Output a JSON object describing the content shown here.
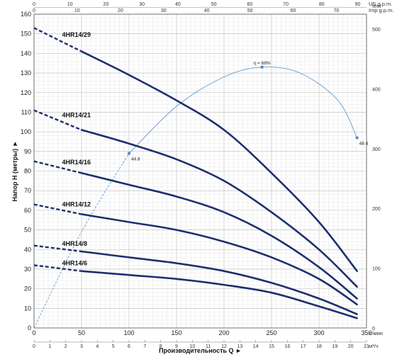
{
  "chart_data": {
    "type": "line",
    "xlabel": "Производительность Q",
    "ylabel": "Напор Н (метры)",
    "x_unit_primary": "л/мин",
    "x_unit_m3h": "м³/ч",
    "x_unit_usgpm": "US g.p.m.",
    "x_unit_impgpm": "Imp g.p.m.",
    "y_unit_feet": "feet",
    "xlim": [
      0,
      350
    ],
    "ylim": [
      0,
      160
    ],
    "y_ticks": [
      0,
      10,
      20,
      30,
      40,
      50,
      60,
      70,
      80,
      90,
      100,
      110,
      120,
      130,
      140,
      150,
      160
    ],
    "x_ticks": [
      0,
      50,
      100,
      150,
      200,
      250,
      300,
      350
    ],
    "m3h_ticks": [
      0,
      1,
      2,
      3,
      4,
      5,
      6,
      7,
      8,
      9,
      10,
      11,
      12,
      13,
      14,
      15,
      16,
      17,
      18,
      19,
      20,
      21,
      22,
      23
    ],
    "usgpm_ticks": [
      0,
      10,
      20,
      30,
      40,
      50,
      60,
      70,
      80,
      90
    ],
    "impgpm_ticks": [
      0,
      10,
      20,
      30,
      40,
      50,
      60,
      70
    ],
    "feet_ticks": [
      0,
      100,
      200,
      300,
      400,
      500
    ],
    "grid": true,
    "series": [
      {
        "name": "4HR14/29",
        "x": [
          0,
          50,
          100,
          150,
          200,
          250,
          300,
          340
        ],
        "y": [
          153,
          141,
          129,
          116,
          101,
          79,
          54,
          29
        ]
      },
      {
        "name": "4HR14/21",
        "x": [
          0,
          50,
          100,
          150,
          200,
          250,
          300,
          340
        ],
        "y": [
          111,
          101,
          94,
          86,
          75,
          59,
          40,
          21
        ]
      },
      {
        "name": "4HR14/16",
        "x": [
          0,
          50,
          100,
          150,
          200,
          250,
          300,
          340
        ],
        "y": [
          85,
          79,
          73,
          67,
          59,
          47,
          31,
          15
        ]
      },
      {
        "name": "4HR14/12",
        "x": [
          0,
          50,
          100,
          150,
          200,
          250,
          300,
          340
        ],
        "y": [
          63,
          58,
          54,
          50,
          44,
          36,
          25,
          12
        ]
      },
      {
        "name": "4HR14/8",
        "x": [
          0,
          50,
          100,
          150,
          200,
          250,
          300,
          340
        ],
        "y": [
          42,
          39,
          36,
          33,
          29,
          23,
          15,
          7
        ]
      },
      {
        "name": "4HR14/6",
        "x": [
          0,
          50,
          100,
          150,
          200,
          250,
          300,
          340
        ],
        "y": [
          32,
          29,
          27,
          25,
          22,
          18,
          11,
          5
        ]
      }
    ],
    "efficiency_curve": {
      "x": [
        0,
        50,
        100,
        150,
        200,
        240,
        280,
        320,
        340
      ],
      "y": [
        0,
        49,
        89,
        113,
        128,
        133,
        130,
        116,
        97
      ],
      "points": [
        {
          "x": 100,
          "y": 89,
          "label": "44.8"
        },
        {
          "x": 240,
          "y": 133,
          "label": "η = 68%"
        },
        {
          "x": 340,
          "y": 97,
          "label": "48.4"
        }
      ]
    }
  }
}
